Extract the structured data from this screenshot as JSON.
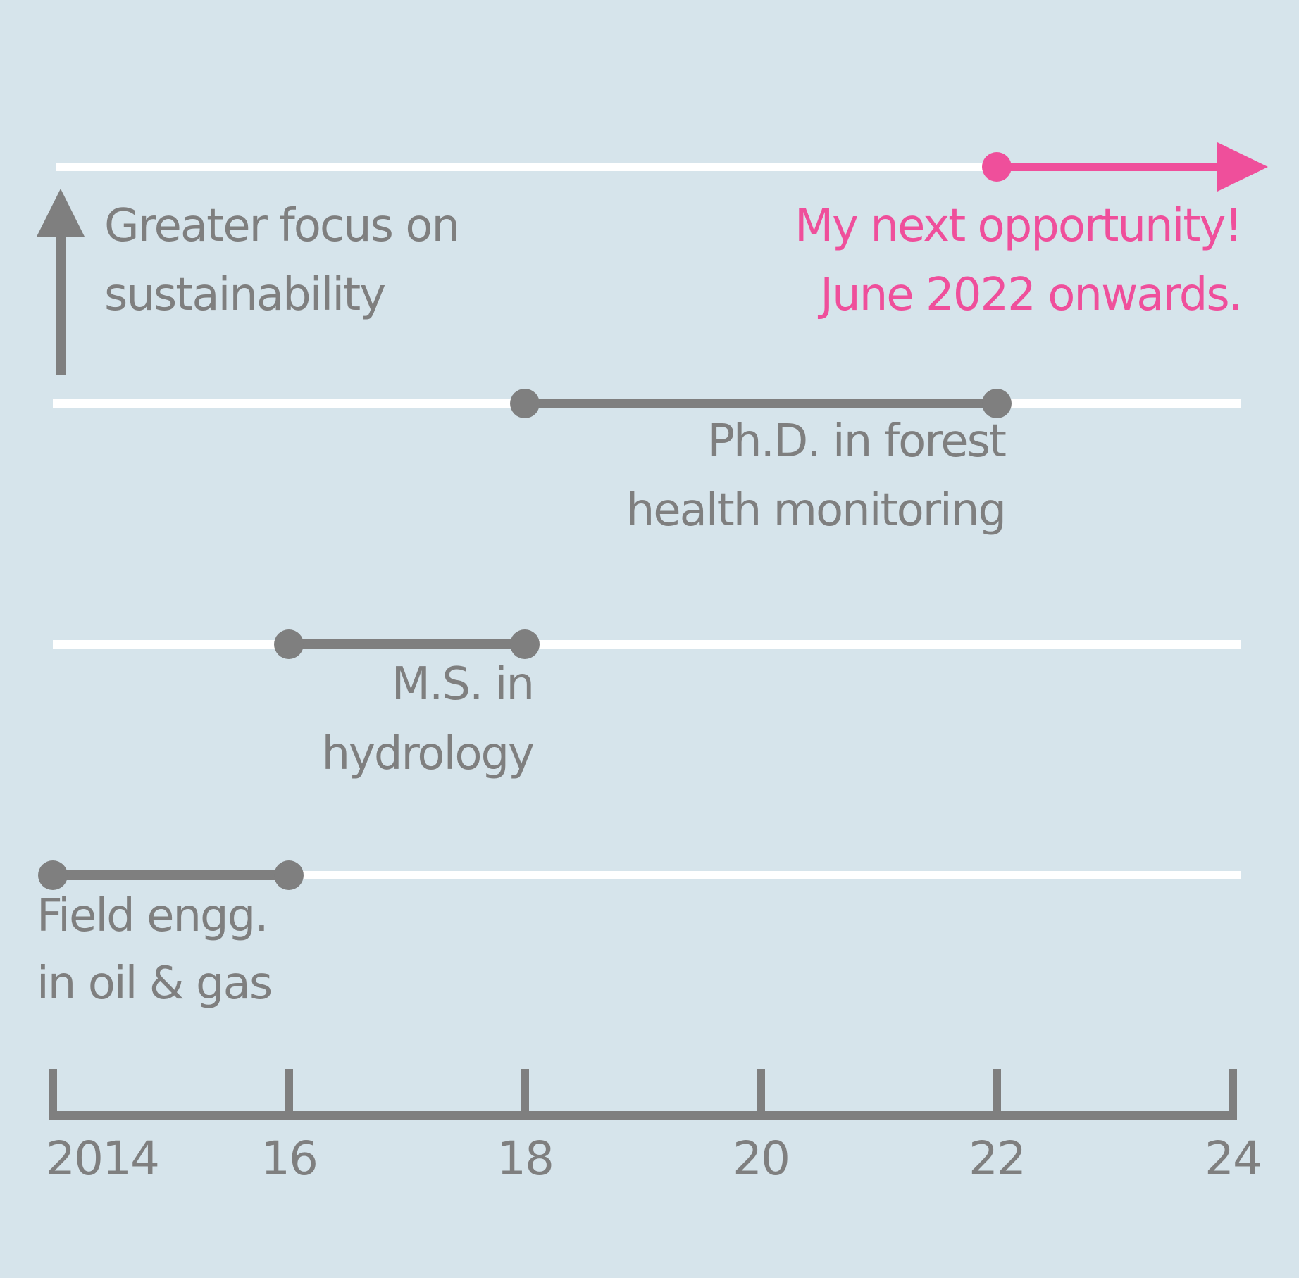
{
  "colors": {
    "background": "#d6e4eb",
    "track": "#ffffff",
    "segment": "#7f7f7f",
    "highlight": "#ef4f9b"
  },
  "axis": {
    "ticks": [
      {
        "value": 2014,
        "label": "2014"
      },
      {
        "value": 2016,
        "label": "16"
      },
      {
        "value": 2018,
        "label": "18"
      },
      {
        "value": 2020,
        "label": "20"
      },
      {
        "value": 2022,
        "label": "22"
      },
      {
        "value": 2024,
        "label": "24"
      }
    ]
  },
  "side_arrow": {
    "label_line1": "Greater focus on",
    "label_line2": "sustainability"
  },
  "chart_data": {
    "type": "timeline",
    "xlim": [
      2014,
      2024
    ],
    "segments": [
      {
        "label_line1": "Field engg.",
        "label_line2": "in oil & gas",
        "start": 2014,
        "end": 2016
      },
      {
        "label_line1": "M.S. in",
        "label_line2": "hydrology",
        "start": 2016,
        "end": 2018
      },
      {
        "label_line1": "Ph.D. in forest",
        "label_line2": "health monitoring",
        "start": 2018,
        "end": 2022
      },
      {
        "label_line1": "My next opportunity!",
        "label_line2": "June 2022 onwards.",
        "start": 2022,
        "end": null,
        "highlight": true
      }
    ]
  }
}
